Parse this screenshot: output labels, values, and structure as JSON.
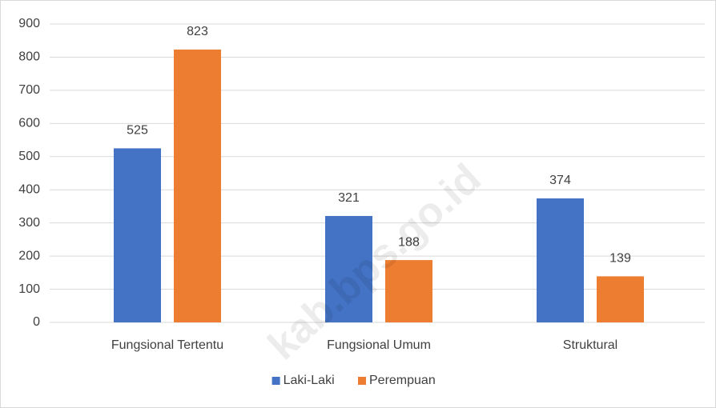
{
  "chart_data": {
    "type": "bar",
    "categories": [
      "Fungsional Tertentu",
      "Fungsional Umum",
      "Struktural"
    ],
    "series": [
      {
        "name": "Laki-Laki",
        "color": "#4472c4",
        "values": [
          525,
          321,
          374
        ]
      },
      {
        "name": "Perempuan",
        "color": "#ed7d31",
        "values": [
          823,
          188,
          139
        ]
      }
    ],
    "ylim": [
      0,
      900
    ],
    "yticks": [
      0,
      100,
      200,
      300,
      400,
      500,
      600,
      700,
      800,
      900
    ],
    "grid": true,
    "legend": "bottom",
    "annotation": "kab.bps.go.id"
  }
}
